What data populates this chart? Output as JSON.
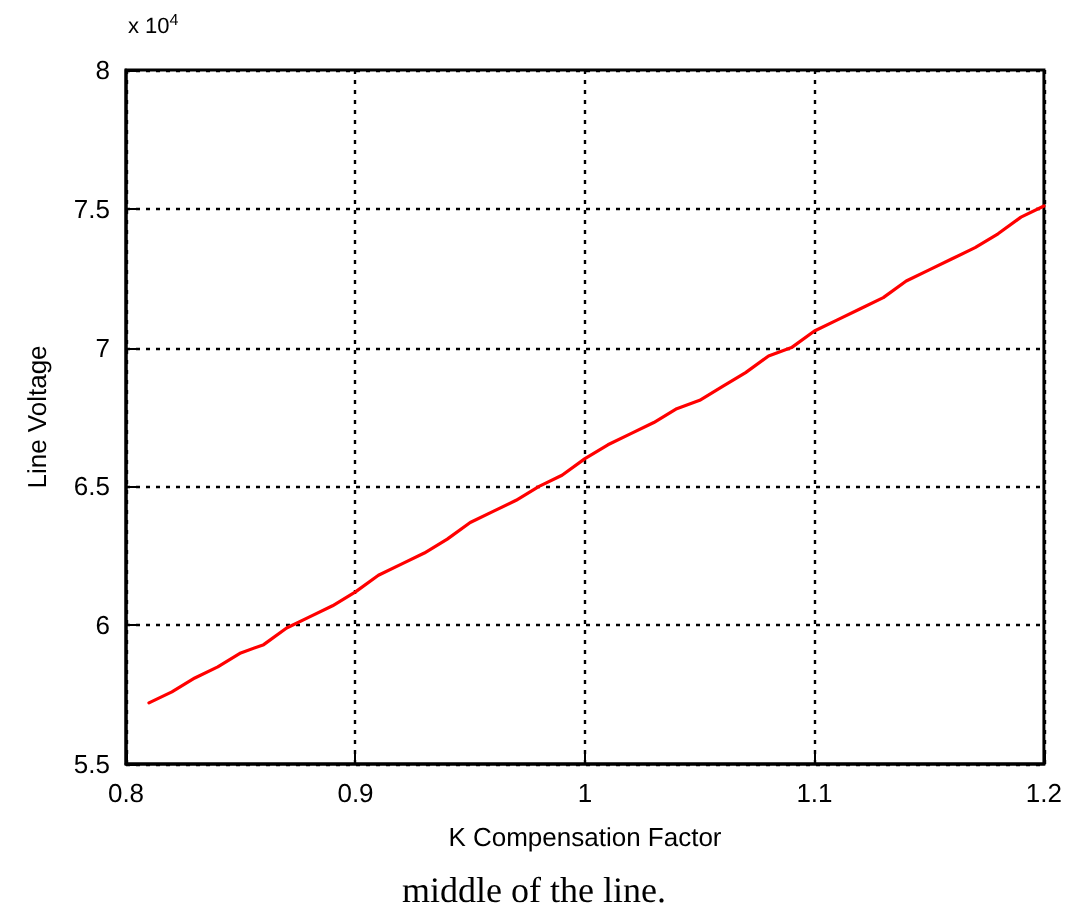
{
  "chart_data": {
    "type": "line",
    "xlabel": "K Compensation Factor",
    "ylabel": "Line Voltage",
    "annotations": [
      "x 10$^{4}$",
      "middle of the line."
    ],
    "x": [
      0.81,
      0.82,
      0.83,
      0.84,
      0.85,
      0.86,
      0.87,
      0.88,
      0.89,
      0.9,
      0.91,
      0.92,
      0.93,
      0.94,
      0.95,
      0.96,
      0.97,
      0.98,
      0.99,
      1.0,
      1.01,
      1.02,
      1.03,
      1.04,
      1.05,
      1.06,
      1.07,
      1.08,
      1.09,
      1.1,
      1.11,
      1.12,
      1.13,
      1.14,
      1.15,
      1.16,
      1.17,
      1.18,
      1.19,
      1.2
    ],
    "series": [
      {
        "color": "#ff0000",
        "values": [
          5.72,
          5.76,
          5.81,
          5.85,
          5.9,
          5.93,
          5.99,
          6.03,
          6.07,
          6.12,
          6.18,
          6.22,
          6.26,
          6.31,
          6.37,
          6.41,
          6.45,
          6.5,
          6.54,
          6.6,
          6.65,
          6.69,
          6.73,
          6.78,
          6.81,
          6.86,
          6.91,
          6.97,
          7.0,
          7.06,
          7.1,
          7.14,
          7.18,
          7.24,
          7.28,
          7.32,
          7.36,
          7.41,
          7.47,
          7.51
        ]
      }
    ],
    "xlim": [
      0.8,
      1.2
    ],
    "xticks": [
      0.8,
      0.9,
      1,
      1.1,
      1.2
    ],
    "ylim": [
      5.5,
      8
    ],
    "yticks": [
      5.5,
      6,
      6.5,
      7,
      7.5,
      8
    ],
    "grid": true,
    "marker": "none",
    "line_style": "solid"
  }
}
